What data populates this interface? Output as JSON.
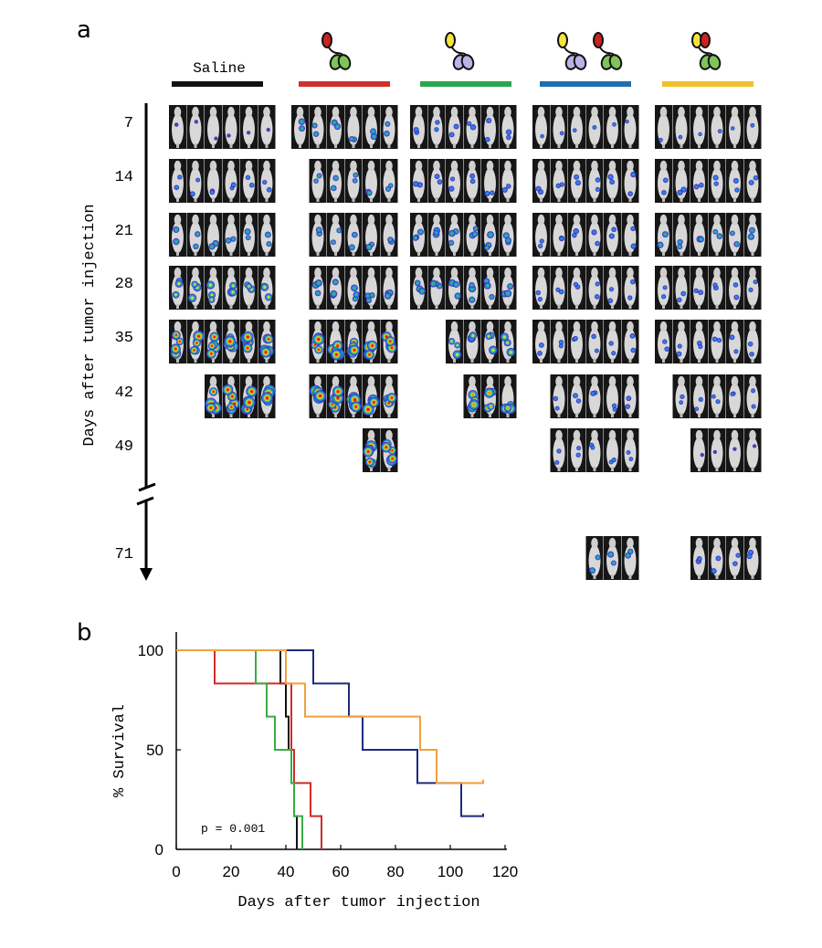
{
  "panel_a": {
    "letter": "a",
    "saline_label": "Saline",
    "groups": [
      {
        "key": "saline",
        "color": "#111111",
        "icon": "none"
      },
      {
        "key": "red-green",
        "color": "#d0302c",
        "icon": "red-green-organoid-icon"
      },
      {
        "key": "yellow-blue",
        "color": "#2aa650",
        "icon": "yellow-blue-organoid-icon"
      },
      {
        "key": "yellow-blue-plus-red-green",
        "color": "#1f6fae",
        "icon": "two-organoid-pairs-icon"
      },
      {
        "key": "yellow-red-green",
        "color": "#f0c02a",
        "icon": "yellow-red-green-organoid-icon"
      }
    ],
    "y_axis_label": "Days after tumor injection",
    "days": [
      "7",
      "14",
      "21",
      "28",
      "35",
      "42",
      "49",
      "71"
    ],
    "icon_colors": {
      "red": "#cc2222",
      "green": "#7fc45a",
      "yellow": "#f5e43a",
      "blue": "#b8b4e8",
      "outline": "#111111"
    },
    "image_counts": [
      [
        6,
        6,
        6,
        6,
        6
      ],
      [
        6,
        5,
        6,
        6,
        6
      ],
      [
        6,
        5,
        6,
        6,
        6
      ],
      [
        6,
        5,
        6,
        6,
        6
      ],
      [
        6,
        5,
        4,
        6,
        6
      ],
      [
        4,
        5,
        3,
        5,
        5
      ],
      [
        0,
        2,
        0,
        5,
        4
      ],
      [
        0,
        0,
        0,
        3,
        4
      ]
    ],
    "signal_levels": [
      [
        0.05,
        0.35,
        0.25,
        0.1,
        0.1
      ],
      [
        0.2,
        0.3,
        0.25,
        0.25,
        0.25
      ],
      [
        0.35,
        0.35,
        0.4,
        0.25,
        0.35
      ],
      [
        0.6,
        0.4,
        0.45,
        0.2,
        0.2
      ],
      [
        0.9,
        0.9,
        0.6,
        0.2,
        0.2
      ],
      [
        0.95,
        0.95,
        0.8,
        0.2,
        0.15
      ],
      [
        0,
        0.9,
        0,
        0.15,
        0.05
      ],
      [
        0,
        0,
        0,
        0.35,
        0.25
      ]
    ]
  },
  "panel_b": {
    "letter": "b",
    "p_value_text": "p = 0.001",
    "chart_data": {
      "type": "line",
      "step": true,
      "xlabel": "Days after tumor injection",
      "ylabel": "% Survival",
      "xlim": [
        0,
        120
      ],
      "ylim": [
        0,
        100
      ],
      "x_ticks": [
        "0",
        "20",
        "40",
        "60",
        "80",
        "100",
        "120"
      ],
      "y_ticks": [
        "0",
        "50",
        "100"
      ],
      "series": [
        {
          "color": "#111111",
          "points": [
            [
              0,
              100
            ],
            [
              38,
              100
            ],
            [
              38,
              83.3
            ],
            [
              40,
              83.3
            ],
            [
              40,
              66.7
            ],
            [
              41,
              66.7
            ],
            [
              41,
              50
            ],
            [
              42,
              50
            ],
            [
              42,
              33.3
            ],
            [
              43,
              33.3
            ],
            [
              43,
              16.7
            ],
            [
              44,
              16.7
            ],
            [
              44,
              0
            ]
          ]
        },
        {
          "color": "#d12a2a",
          "points": [
            [
              0,
              100
            ],
            [
              14,
              100
            ],
            [
              14,
              83.3
            ],
            [
              42,
              83.3
            ],
            [
              42,
              50
            ],
            [
              43,
              50
            ],
            [
              43,
              33.3
            ],
            [
              49,
              33.3
            ],
            [
              49,
              16.7
            ],
            [
              53,
              16.7
            ],
            [
              53,
              0
            ]
          ]
        },
        {
          "color": "#3aab46",
          "points": [
            [
              0,
              100
            ],
            [
              29,
              100
            ],
            [
              29,
              83.3
            ],
            [
              33,
              83.3
            ],
            [
              33,
              66.7
            ],
            [
              36,
              66.7
            ],
            [
              36,
              50
            ],
            [
              42,
              50
            ],
            [
              42,
              33.3
            ],
            [
              43,
              33.3
            ],
            [
              43,
              16.7
            ],
            [
              46,
              16.7
            ],
            [
              46,
              0
            ]
          ]
        },
        {
          "color": "#1e2a7e",
          "points": [
            [
              0,
              100
            ],
            [
              50,
              100
            ],
            [
              50,
              83.3
            ],
            [
              63,
              83.3
            ],
            [
              63,
              66.7
            ],
            [
              68,
              66.7
            ],
            [
              68,
              50
            ],
            [
              88,
              50
            ],
            [
              88,
              33.3
            ],
            [
              104,
              33.3
            ],
            [
              104,
              16.7
            ],
            [
              112,
              16.7
            ],
            [
              112,
              18
            ]
          ]
        },
        {
          "color": "#f0a040",
          "points": [
            [
              0,
              100
            ],
            [
              40,
              100
            ],
            [
              40,
              83.3
            ],
            [
              47,
              83.3
            ],
            [
              47,
              66.7
            ],
            [
              89,
              66.7
            ],
            [
              89,
              50
            ],
            [
              95,
              50
            ],
            [
              95,
              33.3
            ],
            [
              112,
              33.3
            ],
            [
              112,
              35
            ]
          ]
        }
      ]
    }
  }
}
